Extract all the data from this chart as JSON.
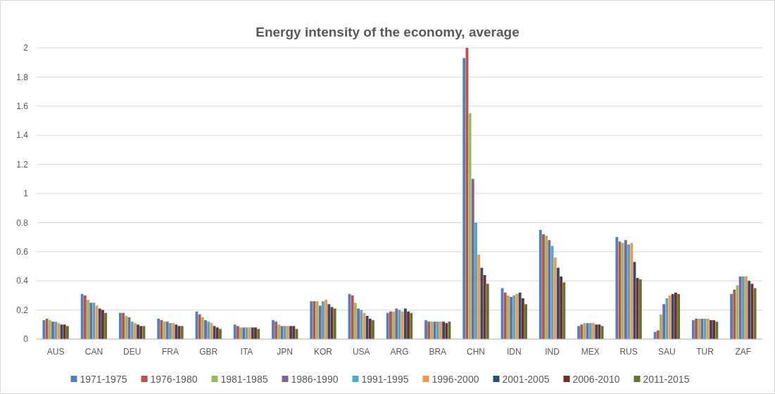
{
  "chart_data": {
    "type": "bar",
    "title": "Energy intensity of the economy, average",
    "categories": [
      "AUS",
      "CAN",
      "DEU",
      "FRA",
      "GBR",
      "ITA",
      "JPN",
      "KOR",
      "USA",
      "ARG",
      "BRA",
      "CHN",
      "IDN",
      "IND",
      "MEX",
      "RUS",
      "SAU",
      "TUR",
      "ZAF"
    ],
    "series": [
      {
        "name": "1971-1975",
        "color": "#4f81bd",
        "values": [
          0.13,
          0.31,
          0.18,
          0.14,
          0.19,
          0.1,
          0.13,
          0.26,
          0.31,
          0.18,
          0.13,
          1.93,
          0.35,
          0.75,
          0.09,
          0.7,
          0.05,
          0.13,
          0.31
        ]
      },
      {
        "name": "1976-1980",
        "color": "#c0504d",
        "values": [
          0.14,
          0.3,
          0.18,
          0.13,
          0.17,
          0.09,
          0.12,
          0.26,
          0.3,
          0.19,
          0.12,
          2.0,
          0.32,
          0.72,
          0.1,
          0.67,
          0.06,
          0.14,
          0.34
        ]
      },
      {
        "name": "1981-1985",
        "color": "#9bbb59",
        "values": [
          0.13,
          0.27,
          0.16,
          0.12,
          0.15,
          0.08,
          0.1,
          0.26,
          0.25,
          0.19,
          0.12,
          1.55,
          0.3,
          0.71,
          0.11,
          0.66,
          0.17,
          0.14,
          0.37
        ]
      },
      {
        "name": "1986-1990",
        "color": "#8064a2",
        "values": [
          0.12,
          0.25,
          0.15,
          0.12,
          0.13,
          0.08,
          0.09,
          0.23,
          0.21,
          0.21,
          0.12,
          1.1,
          0.29,
          0.68,
          0.11,
          0.68,
          0.24,
          0.14,
          0.43
        ]
      },
      {
        "name": "1991-1995",
        "color": "#4bacc6",
        "values": [
          0.12,
          0.25,
          0.12,
          0.11,
          0.12,
          0.08,
          0.09,
          0.26,
          0.2,
          0.2,
          0.12,
          0.8,
          0.3,
          0.64,
          0.11,
          0.65,
          0.28,
          0.14,
          0.43
        ]
      },
      {
        "name": "1996-2000",
        "color": "#f79646",
        "values": [
          0.11,
          0.23,
          0.11,
          0.11,
          0.11,
          0.08,
          0.09,
          0.27,
          0.18,
          0.19,
          0.12,
          0.58,
          0.31,
          0.56,
          0.11,
          0.66,
          0.3,
          0.14,
          0.43
        ]
      },
      {
        "name": "2001-2005",
        "color": "#2c4d75",
        "values": [
          0.1,
          0.21,
          0.1,
          0.1,
          0.09,
          0.08,
          0.09,
          0.24,
          0.16,
          0.21,
          0.12,
          0.49,
          0.32,
          0.49,
          0.1,
          0.53,
          0.31,
          0.13,
          0.4
        ]
      },
      {
        "name": "2006-2010",
        "color": "#772c2a",
        "values": [
          0.1,
          0.2,
          0.09,
          0.09,
          0.08,
          0.08,
          0.09,
          0.22,
          0.14,
          0.19,
          0.11,
          0.44,
          0.28,
          0.43,
          0.1,
          0.42,
          0.32,
          0.13,
          0.38
        ]
      },
      {
        "name": "2011-2015",
        "color": "#5f7530",
        "values": [
          0.09,
          0.18,
          0.09,
          0.09,
          0.07,
          0.07,
          0.07,
          0.21,
          0.13,
          0.18,
          0.12,
          0.38,
          0.24,
          0.39,
          0.09,
          0.41,
          0.31,
          0.12,
          0.35
        ]
      }
    ],
    "ylim": [
      0,
      2
    ],
    "yticks": [
      0,
      0.2,
      0.4,
      0.6,
      0.8,
      1,
      1.2,
      1.4,
      1.6,
      1.8,
      2
    ],
    "grid": "y",
    "legend": "bottom"
  }
}
